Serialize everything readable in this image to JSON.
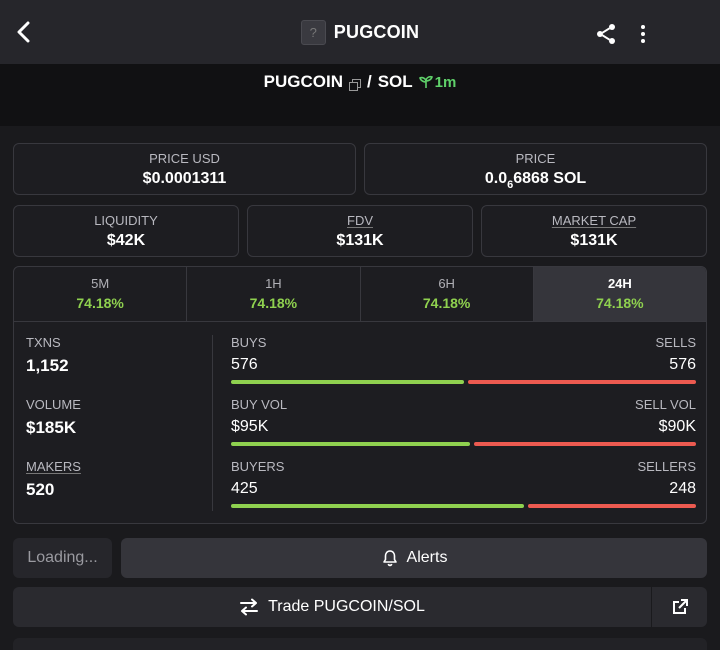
{
  "header": {
    "title": "PUGCOIN",
    "token_placeholder": "?"
  },
  "pair": {
    "base": "PUGCOIN",
    "separator": "/",
    "quote": "SOL",
    "age": "1m"
  },
  "price_usd": {
    "label": "PRICE USD",
    "value": "$0.0001311"
  },
  "price": {
    "label": "PRICE",
    "prefix": "0.0",
    "zeros": "6",
    "digits": "6868",
    "unit": "SOL"
  },
  "metrics": [
    {
      "label": "LIQUIDITY",
      "value": "$42K"
    },
    {
      "label": "FDV",
      "value": "$131K"
    },
    {
      "label": "MARKET CAP",
      "value": "$131K"
    }
  ],
  "tabs": [
    {
      "label": "5M",
      "value": "74.18%"
    },
    {
      "label": "1H",
      "value": "74.18%"
    },
    {
      "label": "6H",
      "value": "74.18%"
    },
    {
      "label": "24H",
      "value": "74.18%",
      "active": true
    }
  ],
  "stats": {
    "txns": {
      "label": "TXNS",
      "value": "1,152"
    },
    "volume": {
      "label": "VOLUME",
      "value": "$185K"
    },
    "makers": {
      "label": "MAKERS",
      "value": "520"
    }
  },
  "ratios": [
    {
      "left_label": "BUYS",
      "left_value": "576",
      "right_label": "SELLS",
      "right_value": "576",
      "green_fraction": 0.5
    },
    {
      "left_label": "BUY VOL",
      "left_value": "$95K",
      "right_label": "SELL VOL",
      "right_value": "$90K",
      "green_fraction": 0.514
    },
    {
      "left_label": "BUYERS",
      "left_value": "425",
      "right_label": "SELLERS",
      "right_value": "248",
      "green_fraction": 0.63
    }
  ],
  "actions": {
    "loading": "Loading...",
    "alerts": "Alerts",
    "trade": "Trade PUGCOIN/SOL"
  },
  "colors": {
    "accent_green": "#8fd14f",
    "sell_red": "#ec5a50",
    "age_green": "#5fd16a"
  }
}
